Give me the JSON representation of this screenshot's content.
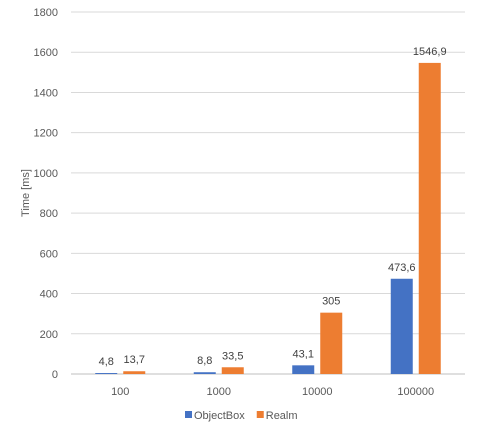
{
  "chart_data": {
    "type": "bar",
    "title": "",
    "xlabel": "",
    "ylabel": "Time [ms]",
    "ylim": [
      0,
      1800
    ],
    "yticks": [
      0,
      200,
      400,
      600,
      800,
      1000,
      1200,
      1400,
      1600,
      1800
    ],
    "grid": true,
    "legend_position": "bottom",
    "categories": [
      "100",
      "1000",
      "10000",
      "100000"
    ],
    "series": [
      {
        "name": "ObjectBox",
        "color": "#4472c4",
        "values": [
          4.8,
          8.8,
          43.1,
          473.6
        ],
        "labels": [
          "4,8",
          "8,8",
          "43,1",
          "473,6"
        ]
      },
      {
        "name": "Realm",
        "color": "#ed7d31",
        "values": [
          13.7,
          33.5,
          305,
          1546.9
        ],
        "labels": [
          "13,7",
          "33,5",
          "305",
          "1546,9"
        ]
      }
    ]
  }
}
